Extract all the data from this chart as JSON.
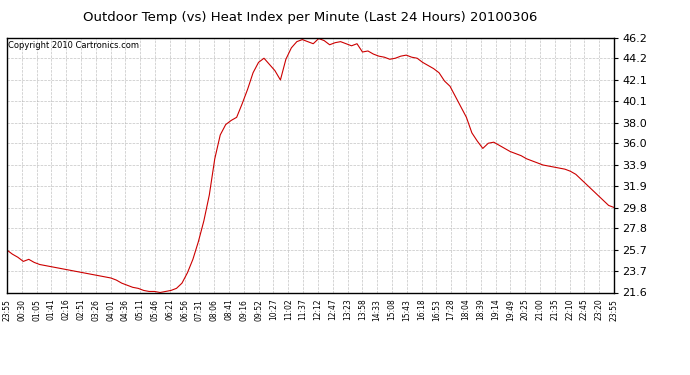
{
  "title": "Outdoor Temp (vs) Heat Index per Minute (Last 24 Hours) 20100306",
  "copyright": "Copyright 2010 Cartronics.com",
  "line_color": "#cc0000",
  "background_color": "#ffffff",
  "grid_color": "#aaaaaa",
  "grid_linestyle": "--",
  "yticks": [
    21.6,
    23.7,
    25.7,
    27.8,
    29.8,
    31.9,
    33.9,
    36.0,
    38.0,
    40.1,
    42.1,
    44.2,
    46.2
  ],
  "ylim": [
    21.6,
    46.2
  ],
  "xtick_labels": [
    "23:55",
    "00:30",
    "01:05",
    "01:41",
    "02:16",
    "02:51",
    "03:26",
    "04:01",
    "04:36",
    "05:11",
    "05:46",
    "06:21",
    "06:56",
    "07:31",
    "08:06",
    "08:41",
    "09:16",
    "09:52",
    "10:27",
    "11:02",
    "11:37",
    "12:12",
    "12:47",
    "13:23",
    "13:58",
    "14:33",
    "15:08",
    "15:43",
    "16:18",
    "16:53",
    "17:28",
    "18:04",
    "18:39",
    "19:14",
    "19:49",
    "20:25",
    "21:00",
    "21:35",
    "22:10",
    "22:45",
    "23:20",
    "23:55"
  ],
  "y_values": [
    25.7,
    25.3,
    25.0,
    24.6,
    24.8,
    24.5,
    24.3,
    24.2,
    24.1,
    24.0,
    23.9,
    23.8,
    23.7,
    23.6,
    23.5,
    23.4,
    23.3,
    23.2,
    23.1,
    23.0,
    22.8,
    22.5,
    22.3,
    22.1,
    22.0,
    21.8,
    21.7,
    21.7,
    21.6,
    21.7,
    21.8,
    22.0,
    22.5,
    23.5,
    24.8,
    26.5,
    28.5,
    31.0,
    34.5,
    36.8,
    37.8,
    38.2,
    38.5,
    39.8,
    41.2,
    42.8,
    43.8,
    44.2,
    43.6,
    43.0,
    42.1,
    44.1,
    45.2,
    45.8,
    46.0,
    45.8,
    45.6,
    46.1,
    45.9,
    45.5,
    45.7,
    45.8,
    45.6,
    45.4,
    45.6,
    44.8,
    44.9,
    44.6,
    44.4,
    44.3,
    44.1,
    44.2,
    44.4,
    44.5,
    44.3,
    44.2,
    43.8,
    43.5,
    43.2,
    42.8,
    42.0,
    41.5,
    40.5,
    39.5,
    38.5,
    37.0,
    36.2,
    35.5,
    36.0,
    36.1,
    35.8,
    35.5,
    35.2,
    35.0,
    34.8,
    34.5,
    34.3,
    34.1,
    33.9,
    33.8,
    33.7,
    33.6,
    33.5,
    33.3,
    33.0,
    32.5,
    32.0,
    31.5,
    31.0,
    30.5,
    30.0,
    29.8
  ]
}
